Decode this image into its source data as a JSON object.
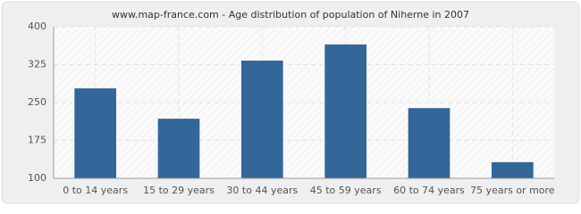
{
  "chart_data": {
    "type": "bar",
    "title": "www.map-france.com - Age distribution of population of Niherne in 2007",
    "categories": [
      "0 to 14 years",
      "15 to 29 years",
      "30 to 44 years",
      "45 to 59 years",
      "60 to 74 years",
      "75 years or more"
    ],
    "values": [
      278,
      218,
      333,
      365,
      239,
      132
    ],
    "color": "#336699",
    "ylim": [
      100,
      400
    ],
    "yticks": [
      100,
      175,
      250,
      325,
      400
    ],
    "grid": true
  }
}
